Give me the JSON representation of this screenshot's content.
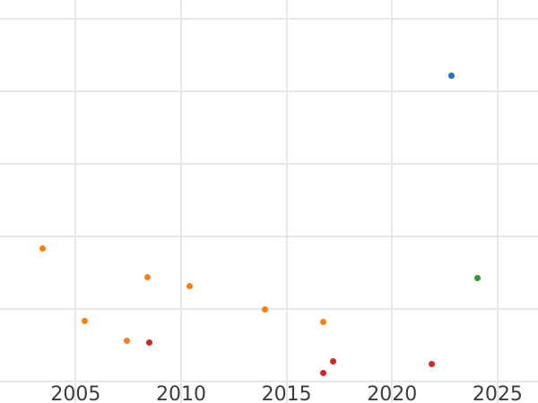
{
  "chart_data": {
    "type": "scatter",
    "title": "",
    "background_color": "#ffffff",
    "grid": {
      "visible": true,
      "color": "#e7e7e7"
    },
    "legend": {
      "visible": false
    },
    "tick_label_color": "#3d3d3d",
    "x_axis": {
      "label": "",
      "range": [
        2001.41,
        2026.92
      ],
      "ticks": [
        2005,
        2010,
        2015,
        2020,
        2025
      ],
      "tick_labels": [
        "2005",
        "2010",
        "2015",
        "2020",
        "2025"
      ]
    },
    "y_axis": {
      "label": "",
      "note": "no tick labels visible; values in gridline units",
      "range": [
        -0.3,
        5.26
      ],
      "gridline_values": [
        0,
        1,
        2,
        3,
        4,
        5
      ],
      "tick_labels": []
    },
    "series": [
      {
        "name": "orange",
        "color": "#ff7f0e",
        "points": [
          [
            2003.41,
            1.83
          ],
          [
            2005.43,
            0.83
          ],
          [
            2007.42,
            0.56
          ],
          [
            2008.4,
            1.43
          ],
          [
            2010.41,
            1.31
          ],
          [
            2013.99,
            0.99
          ],
          [
            2016.72,
            0.82
          ]
        ]
      },
      {
        "name": "red",
        "color": "#d62728",
        "points": [
          [
            2008.49,
            0.54
          ],
          [
            2016.75,
            0.12
          ],
          [
            2017.19,
            0.27
          ],
          [
            2021.87,
            0.24
          ]
        ]
      },
      {
        "name": "blue",
        "color": "#1f77b4",
        "points": [
          [
            2022.81,
            4.21
          ]
        ]
      },
      {
        "name": "green",
        "color": "#2ca02c",
        "points": [
          [
            2024.03,
            1.42
          ]
        ]
      }
    ]
  }
}
